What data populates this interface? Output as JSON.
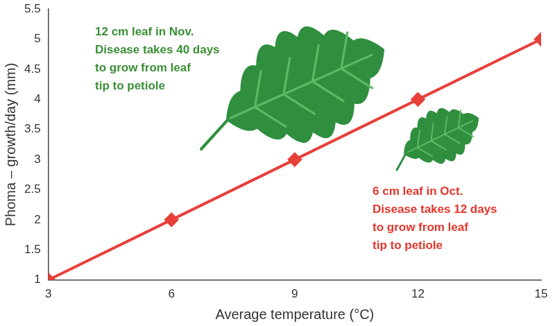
{
  "chart_data": {
    "type": "line",
    "x_label": "Average temperature (°C)",
    "y_label": "Phoma – growth/day (mm)",
    "x": [
      3,
      6,
      9,
      12,
      15
    ],
    "values": [
      1,
      2,
      3,
      4,
      5
    ],
    "color": "#e8403a",
    "marker": "diamond",
    "line_style": "solid",
    "xlim": [
      3,
      15
    ],
    "xticks": [
      3,
      6,
      9,
      12,
      15
    ],
    "ylim": [
      1,
      5.5
    ],
    "yticks": [
      1,
      1.5,
      2,
      2.5,
      3,
      3.5,
      4,
      4.5,
      5,
      5.5
    ],
    "grid": false,
    "annotations": [
      {
        "lines": [
          "12 cm leaf in Nov.",
          "Disease takes 40 days",
          "to grow from leaf",
          "tip to petiole"
        ],
        "color": "#3a8f35"
      },
      {
        "lines": [
          "6 cm leaf in Oct.",
          "Disease takes 12 days",
          "to grow from leaf",
          "tip to petiole"
        ],
        "color": "#e5352b"
      }
    ]
  }
}
